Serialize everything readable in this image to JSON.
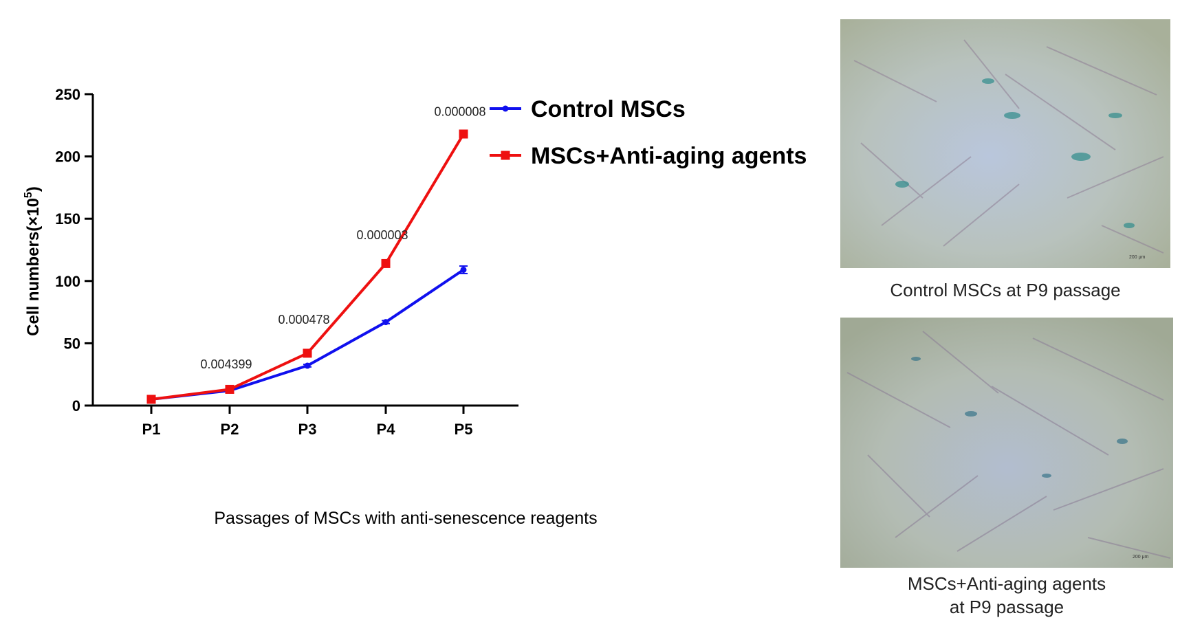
{
  "chart_data": {
    "type": "line",
    "categories": [
      "P1",
      "P2",
      "P3",
      "P4",
      "P5"
    ],
    "series": [
      {
        "name": "Control MSCs",
        "values": [
          5,
          12,
          32,
          67,
          109
        ],
        "errors": [
          0.5,
          0.8,
          1.0,
          1.2,
          3.0
        ],
        "color": "#1010ee",
        "marker": "circle"
      },
      {
        "name": "MSCs+Anti-aging agents",
        "values": [
          5,
          13,
          42,
          114,
          218
        ],
        "errors": [
          0.5,
          0.8,
          1.2,
          2.0,
          3.0
        ],
        "color": "#ee1010",
        "marker": "square"
      }
    ],
    "ylabel": "Cell numbers(×10",
    "ylabel_sup": "5",
    "ylabel_close": ")",
    "xlabel": "Passages of MSCs with anti-senescence reagents",
    "ylim": [
      0,
      250
    ],
    "yticks": [
      0,
      50,
      100,
      150,
      200,
      250
    ],
    "annotations": [
      {
        "category": "P2",
        "text": "0.004399",
        "y": 33
      },
      {
        "category": "P3",
        "text": "0.000478",
        "y": 69
      },
      {
        "category": "P4",
        "text": "0.000003",
        "y": 137
      },
      {
        "category": "P5",
        "text": "0.000008",
        "y": 236
      }
    ],
    "legend_position": "top-right",
    "grid": false
  },
  "images": [
    {
      "caption_lines": [
        "Control MSCs at P9 passage"
      ],
      "scale_text": "200 μm"
    },
    {
      "caption_lines": [
        "MSCs+Anti-aging agents",
        "at P9 passage"
      ],
      "scale_text": "200 μm"
    }
  ]
}
